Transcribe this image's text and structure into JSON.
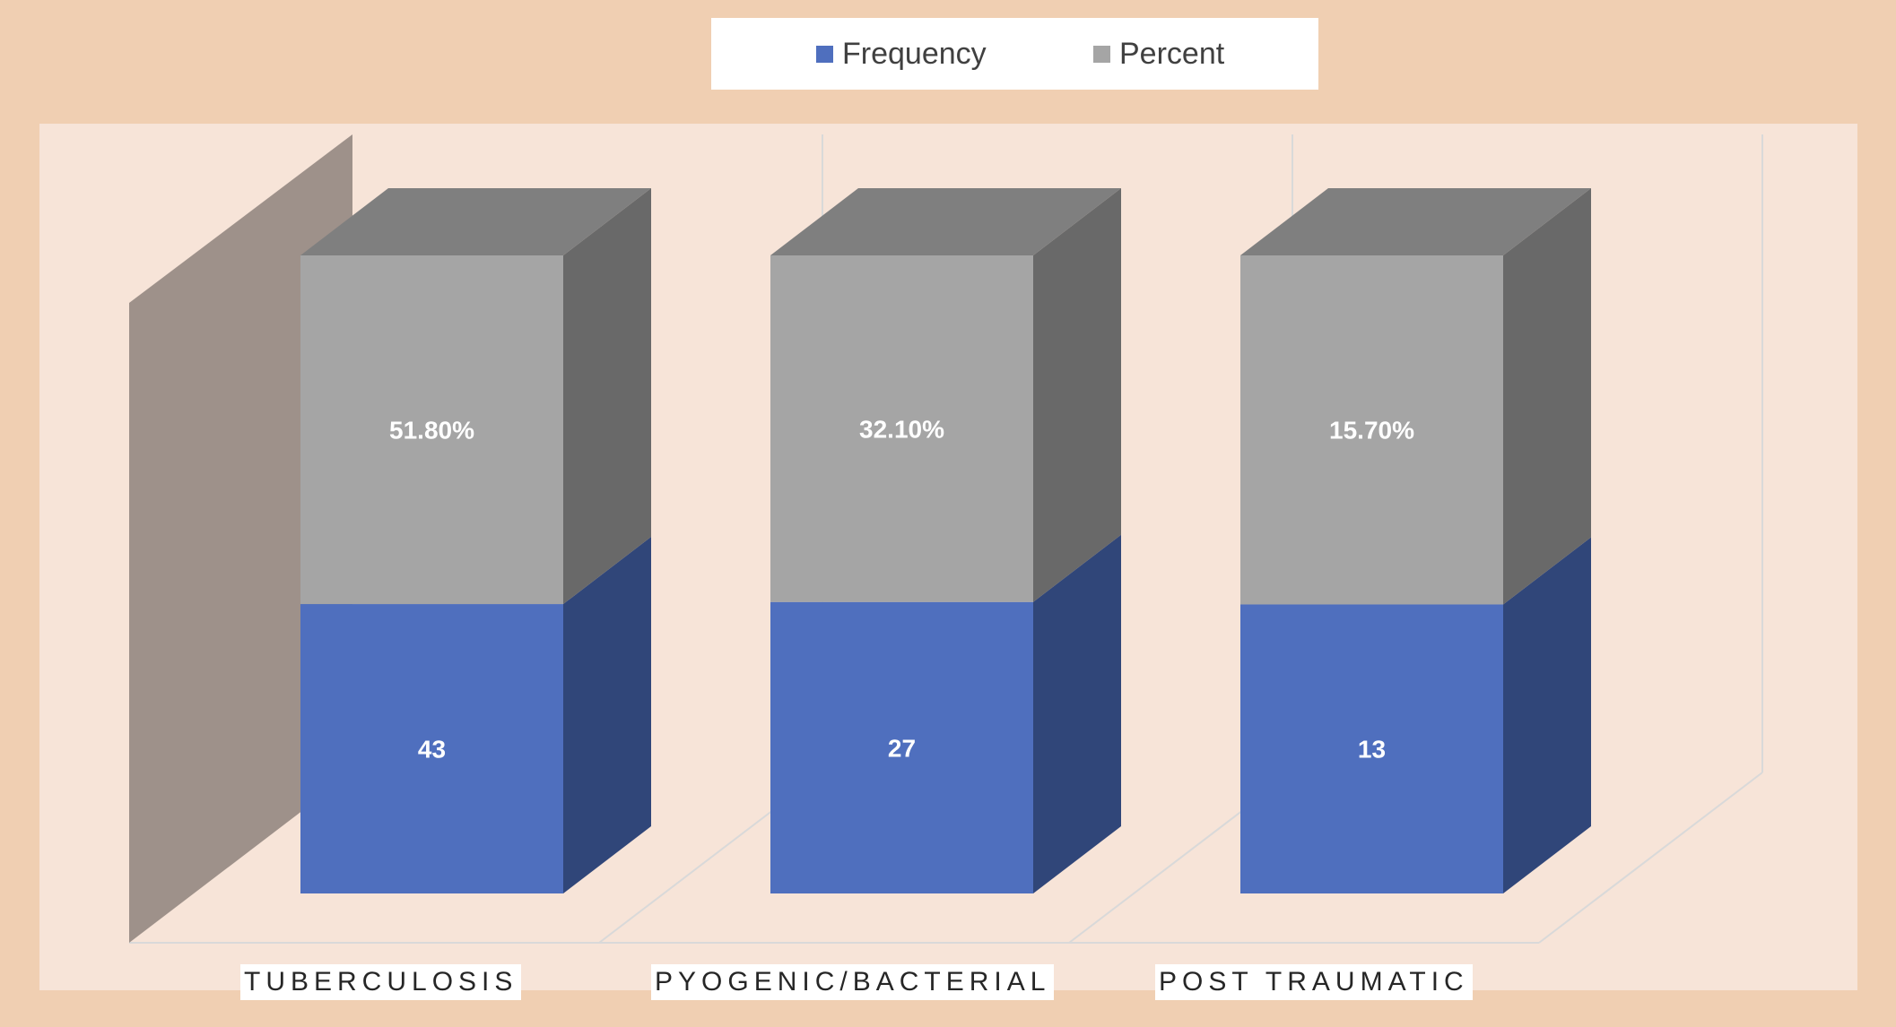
{
  "chart_data": {
    "type": "bar",
    "stacked": true,
    "three_d": true,
    "categories": [
      "TUBERCULOSIS",
      "PYOGENIC/BACTERIAL",
      "POST TRAUMATIC"
    ],
    "series": [
      {
        "name": "Frequency",
        "values": [
          43,
          27,
          13
        ],
        "data_labels": [
          "43",
          "27",
          "13"
        ]
      },
      {
        "name": "Percent",
        "values": [
          51.8,
          32.1,
          15.7
        ],
        "data_labels": [
          "51.80%",
          "32.10%",
          "15.70%"
        ]
      }
    ],
    "legend_position": "top",
    "grid": true
  },
  "colors": {
    "frequency_front": "#4f6fbe",
    "frequency_side": "#304679",
    "percent_front": "#a5a5a5",
    "percent_side": "#696969",
    "percent_top": "#7f7f7f",
    "back_wall": "#9e918a",
    "plot_area": "#f7e4d8",
    "page_background": "#f0cfb2"
  }
}
